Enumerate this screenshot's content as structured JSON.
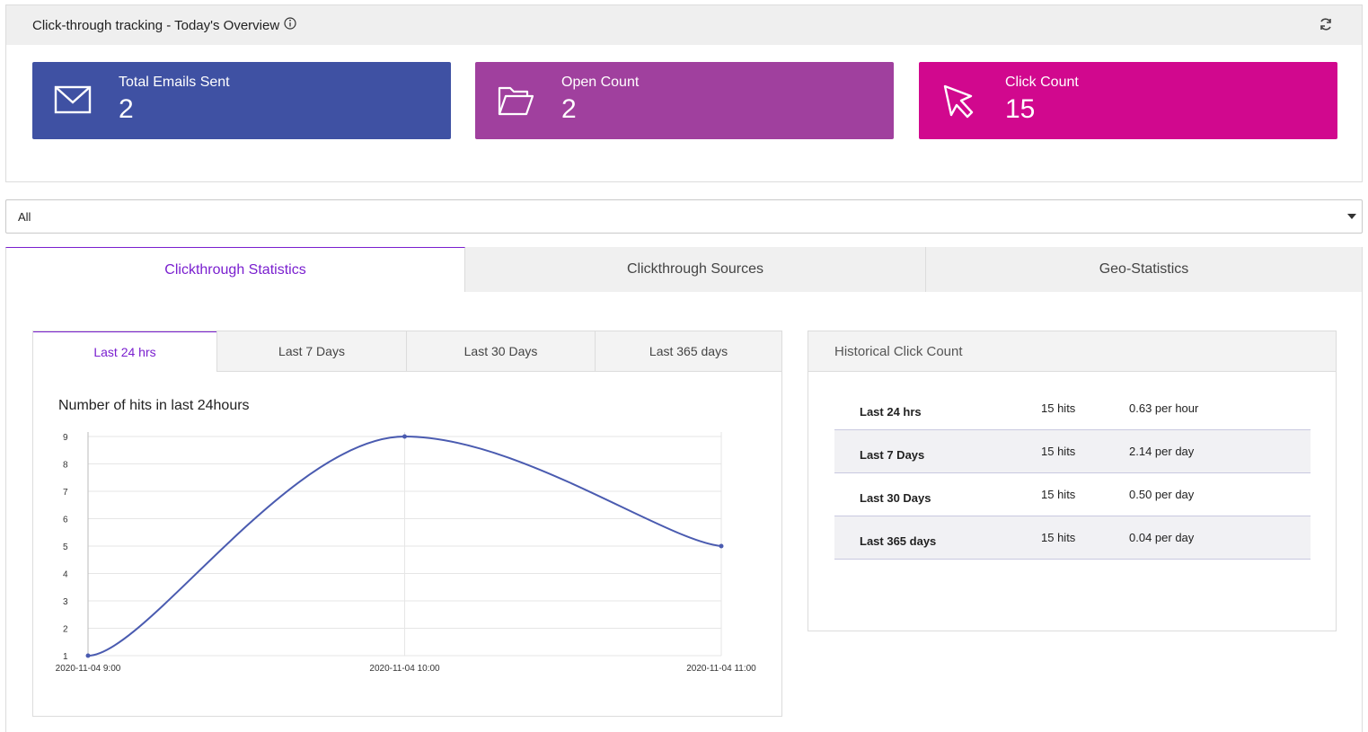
{
  "overview": {
    "title": "Click-through tracking - Today's Overview",
    "cards": [
      {
        "label": "Total Emails Sent",
        "value": "2",
        "color": "#3f51a3",
        "icon": "envelope-icon"
      },
      {
        "label": "Open Count",
        "value": "2",
        "color": "#a0409e",
        "icon": "folder-open-icon"
      },
      {
        "label": "Click Count",
        "value": "15",
        "color": "#d1088e",
        "icon": "cursor-arrow-icon"
      }
    ]
  },
  "filter": {
    "selected": "All"
  },
  "main_tabs": [
    {
      "label": "Clickthrough Statistics",
      "active": true
    },
    {
      "label": "Clickthrough Sources",
      "active": false
    },
    {
      "label": "Geo-Statistics",
      "active": false
    }
  ],
  "sub_tabs": [
    {
      "label": "Last 24 hrs",
      "active": true
    },
    {
      "label": "Last 7 Days",
      "active": false
    },
    {
      "label": "Last 30 Days",
      "active": false
    },
    {
      "label": "Last 365 days",
      "active": false
    }
  ],
  "chart_data": {
    "type": "line",
    "title": "Number of hits in last 24hours",
    "x": [
      "2020-11-04 9:00",
      "2020-11-04 10:00",
      "2020-11-04 11:00"
    ],
    "series": [
      {
        "values": [
          1,
          9,
          5
        ]
      }
    ],
    "ylim": [
      1,
      9
    ],
    "yticks": [
      1,
      2,
      3,
      4,
      5,
      6,
      7,
      8,
      9
    ],
    "grid": true,
    "smooth": true,
    "color": "#4a5bb0"
  },
  "historical": {
    "title": "Historical Click Count",
    "rows": [
      {
        "period": "Last 24 hrs",
        "hits": "15 hits",
        "rate": "0.63 per hour"
      },
      {
        "period": "Last 7 Days",
        "hits": "15 hits",
        "rate": "2.14 per day"
      },
      {
        "period": "Last 30 Days",
        "hits": "15 hits",
        "rate": "0.50 per day"
      },
      {
        "period": "Last 365 days",
        "hits": "15 hits",
        "rate": "0.04 per day"
      }
    ]
  },
  "colors": {
    "accent": "#7a1fcf"
  }
}
